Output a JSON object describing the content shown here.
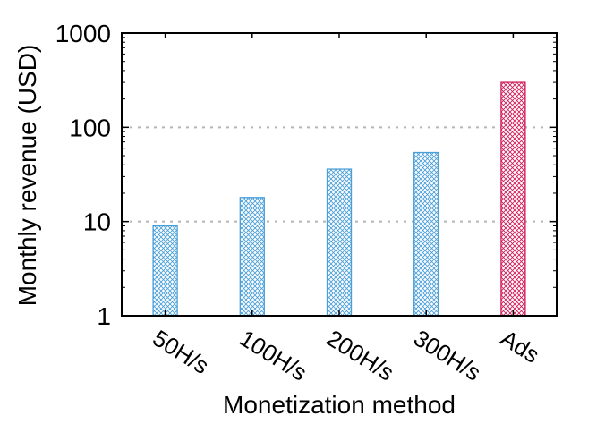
{
  "chart_data": {
    "type": "bar",
    "title": "",
    "xlabel": "Monetization method",
    "ylabel": "Monthly revenue (USD)",
    "y_scale": "log",
    "ylim": [
      1,
      1000
    ],
    "yticks": [
      {
        "value": 1,
        "label": "1"
      },
      {
        "value": 10,
        "label": "10"
      },
      {
        "value": 100,
        "label": "100"
      },
      {
        "value": 1000,
        "label": "1000"
      }
    ],
    "grid": "horizontal dotted at 10 and 100",
    "categories": [
      "50H/s",
      "100H/s",
      "200H/s",
      "300H/s",
      "Ads"
    ],
    "values": [
      9,
      18,
      36,
      54,
      300
    ],
    "bar_colors": [
      "#4a9fd8",
      "#4a9fd8",
      "#4a9fd8",
      "#4a9fd8",
      "#d01c58"
    ],
    "bar_fill_pattern": "crosshatch"
  }
}
